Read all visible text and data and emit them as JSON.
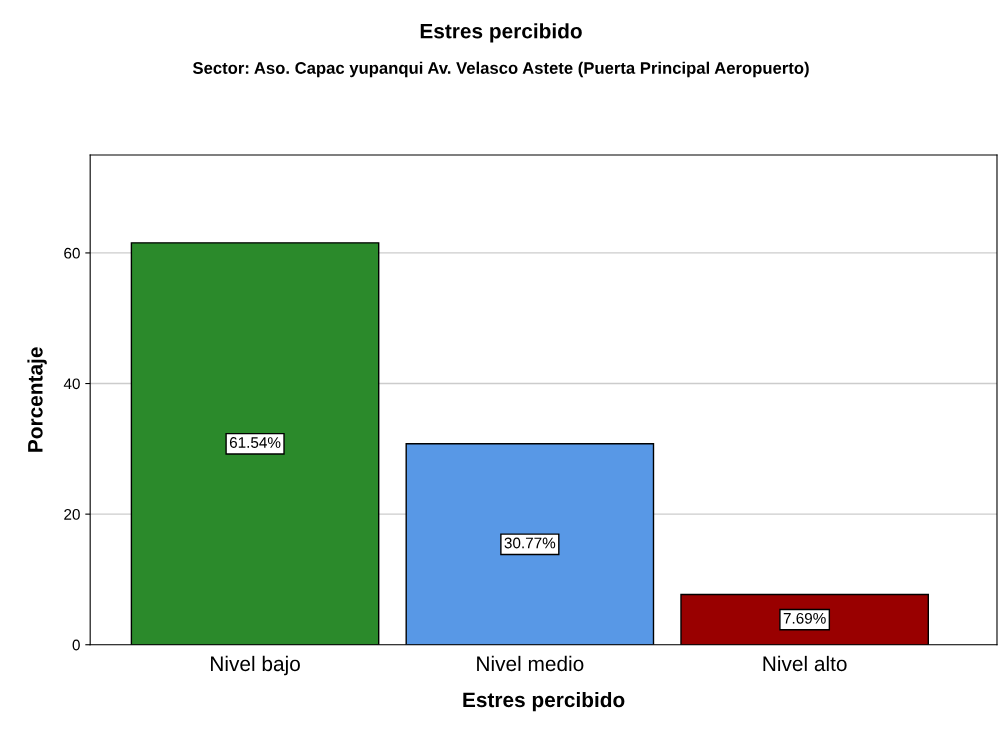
{
  "chart_data": {
    "type": "bar",
    "title": "Estres percibido",
    "subtitle": "Sector: Aso. Capac yupanqui Av. Velasco Astete (Puerta Principal Aeropuerto)",
    "xlabel": "Estres percibido",
    "ylabel": "Porcentaje",
    "categories": [
      "Nivel bajo",
      "Nivel medio",
      "Nivel alto"
    ],
    "values": [
      61.54,
      30.77,
      7.69
    ],
    "value_labels": [
      "61.54%",
      "30.77%",
      "7.69%"
    ],
    "colors": [
      "#2b8a2b",
      "#5898e6",
      "#990000"
    ],
    "ylim": [
      0,
      75
    ],
    "yticks": [
      0,
      20,
      40,
      60
    ],
    "grid": "y"
  }
}
